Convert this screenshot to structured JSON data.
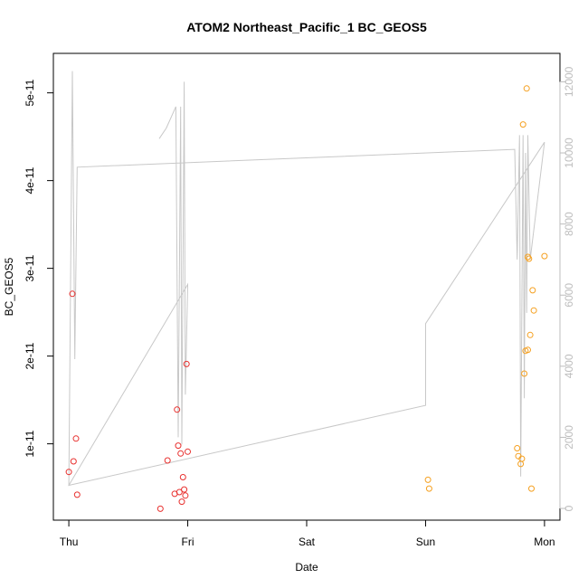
{
  "chart_data": {
    "type": "scatter",
    "title": "ATOM2 Northeast_Pacific_1 BC_GEOS5",
    "xlabel": "Date",
    "ylabel": "BC_GEOS5",
    "x_unit": "days since Thu 00:00",
    "x_ticks": [
      {
        "x": 0,
        "label": "Thu"
      },
      {
        "x": 1,
        "label": "Fri"
      },
      {
        "x": 2,
        "label": "Sat"
      },
      {
        "x": 3,
        "label": "Sun"
      },
      {
        "x": 4,
        "label": "Mon"
      }
    ],
    "xlim": [
      -0.13,
      4.13
    ],
    "ylim": [
      1.3e-12,
      5.45e-11
    ],
    "y_ticks": [
      {
        "v": 1e-11,
        "label": "1e-11"
      },
      {
        "v": 2e-11,
        "label": "2e-11"
      },
      {
        "v": 3e-11,
        "label": "3e-11"
      },
      {
        "v": 4e-11,
        "label": "4e-11"
      },
      {
        "v": 5e-11,
        "label": "5e-11"
      }
    ],
    "y2lim": [
      -330,
      12800
    ],
    "y2_ticks": [
      {
        "v": 0,
        "label": "0"
      },
      {
        "v": 2000,
        "label": "2000"
      },
      {
        "v": 4000,
        "label": "4000"
      },
      {
        "v": 6000,
        "label": "6000"
      },
      {
        "v": 8000,
        "label": "8000"
      },
      {
        "v": 10000,
        "label": "10000"
      },
      {
        "v": 12000,
        "label": "12000"
      }
    ],
    "grid": false,
    "colors": {
      "series_red": "#e8302e",
      "series_orange": "#f5a020",
      "altitude_line": "#c8c8c8",
      "axis": "#000000",
      "right_axis": "#bdbdbd"
    },
    "series": [
      {
        "color": "#e8302e",
        "points": [
          {
            "x": 0.0,
            "y": 6.8e-12
          },
          {
            "x": 0.03,
            "y": 2.71e-11
          },
          {
            "x": 0.04,
            "y": 8e-12
          },
          {
            "x": 0.06,
            "y": 1.06e-11
          },
          {
            "x": 0.07,
            "y": 4.2e-12
          },
          {
            "x": 0.77,
            "y": 2.6e-12
          },
          {
            "x": 0.83,
            "y": 8.1e-12
          },
          {
            "x": 0.89,
            "y": 4.3e-12
          },
          {
            "x": 0.91,
            "y": 1.39e-11
          },
          {
            "x": 0.92,
            "y": 9.8e-12
          },
          {
            "x": 0.93,
            "y": 4.5e-12
          },
          {
            "x": 0.94,
            "y": 8.9e-12
          },
          {
            "x": 0.95,
            "y": 3.4e-12
          },
          {
            "x": 0.96,
            "y": 6.2e-12
          },
          {
            "x": 0.97,
            "y": 4.8e-12
          },
          {
            "x": 0.98,
            "y": 4.1e-12
          },
          {
            "x": 0.99,
            "y": 1.91e-11
          },
          {
            "x": 1.0,
            "y": 9.1e-12
          }
        ]
      },
      {
        "color": "#f5a020",
        "points": [
          {
            "x": 3.02,
            "y": 5.9e-12
          },
          {
            "x": 3.03,
            "y": 4.9e-12
          },
          {
            "x": 3.77,
            "y": 9.5e-12
          },
          {
            "x": 3.78,
            "y": 8.6e-12
          },
          {
            "x": 3.8,
            "y": 7.7e-12
          },
          {
            "x": 3.81,
            "y": 8.3e-12
          },
          {
            "x": 3.82,
            "y": 4.64e-11
          },
          {
            "x": 3.83,
            "y": 1.8e-11
          },
          {
            "x": 3.84,
            "y": 2.06e-11
          },
          {
            "x": 3.85,
            "y": 5.05e-11
          },
          {
            "x": 3.86,
            "y": 3.13e-11
          },
          {
            "x": 3.86,
            "y": 2.07e-11
          },
          {
            "x": 3.87,
            "y": 3.11e-11
          },
          {
            "x": 3.88,
            "y": 2.24e-11
          },
          {
            "x": 3.89,
            "y": 4.9e-12
          },
          {
            "x": 3.9,
            "y": 2.75e-11
          },
          {
            "x": 3.91,
            "y": 2.52e-11
          },
          {
            "x": 4.0,
            "y": 3.14e-11
          }
        ]
      }
    ],
    "altitude_line": [
      {
        "x": 0.0,
        "alt": 650
      },
      {
        "x": 0.03,
        "alt": 12300
      },
      {
        "x": 0.05,
        "alt": 4200
      },
      {
        "x": 0.07,
        "alt": 9600
      },
      {
        "x": 3.75,
        "alt": 10100
      },
      {
        "x": 3.77,
        "alt": 7000
      },
      {
        "x": 3.79,
        "alt": 10500
      },
      {
        "x": 3.8,
        "alt": 900
      },
      {
        "x": 3.82,
        "alt": 10500
      },
      {
        "x": 3.83,
        "alt": 3100
      },
      {
        "x": 3.84,
        "alt": 10000
      },
      {
        "x": 3.85,
        "alt": 5500
      },
      {
        "x": 3.86,
        "alt": 10500
      },
      {
        "x": 3.88,
        "alt": 7000
      },
      {
        "x": 4.0,
        "alt": 10300
      },
      {
        "x": 3.0,
        "alt": 5200
      },
      {
        "x": 3.0,
        "alt": 2900
      },
      {
        "x": 0.0,
        "alt": 650
      },
      {
        "x": 1.0,
        "alt": 6300
      },
      {
        "x": 0.98,
        "alt": 3200
      },
      {
        "x": 0.97,
        "alt": 12000
      },
      {
        "x": 0.95,
        "alt": 1800
      },
      {
        "x": 0.94,
        "alt": 11300
      },
      {
        "x": 0.92,
        "alt": 2000
      },
      {
        "x": 0.9,
        "alt": 11300
      },
      {
        "x": 0.82,
        "alt": 10700
      },
      {
        "x": 0.76,
        "alt": 10400
      }
    ]
  }
}
